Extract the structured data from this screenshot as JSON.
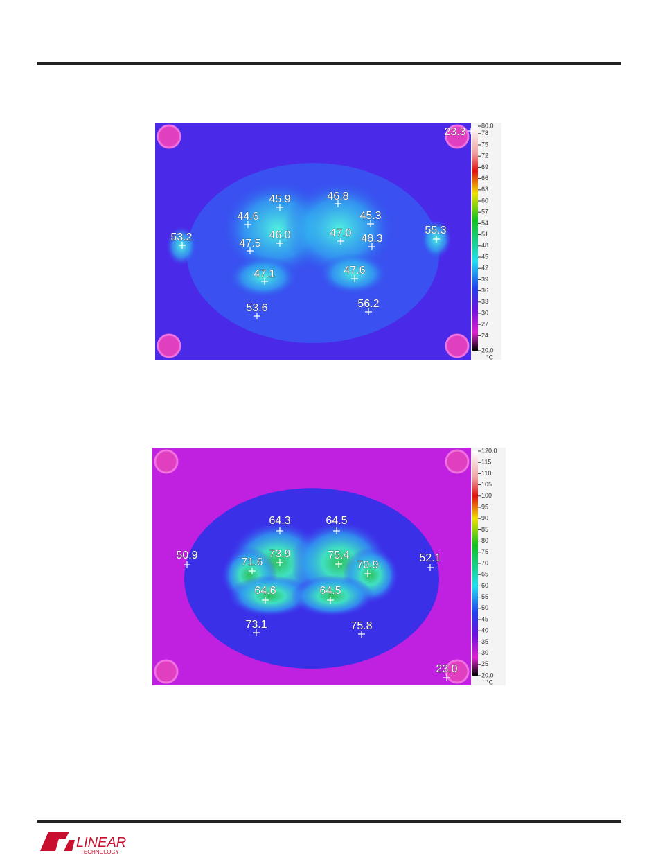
{
  "images": [
    {
      "readings": [
        "23.3",
        "45.9",
        "46.8",
        "44.6",
        "45.3",
        "53.2",
        "46.0",
        "47.0",
        "55.3",
        "47.5",
        "48.3",
        "47.1",
        "47.6",
        "53.6",
        "56.2"
      ],
      "scale": {
        "ticks": [
          "80.0",
          "78",
          "75",
          "72",
          "69",
          "66",
          "63",
          "60",
          "57",
          "54",
          "51",
          "48",
          "45",
          "42",
          "39",
          "36",
          "33",
          "30",
          "27",
          "24",
          "20.0"
        ],
        "unit": "°C"
      }
    },
    {
      "readings": [
        "64.3",
        "64.5",
        "50.9",
        "73.9",
        "75.4",
        "52.1",
        "71.6",
        "70.9",
        "64.6",
        "64.5",
        "73.1",
        "75.8",
        "23.0"
      ],
      "scale": {
        "ticks": [
          "120.0",
          "115",
          "110",
          "105",
          "100",
          "95",
          "90",
          "85",
          "80",
          "75",
          "70",
          "65",
          "60",
          "55",
          "50",
          "45",
          "40",
          "35",
          "30",
          "25",
          "20.0"
        ],
        "unit": "°C"
      }
    }
  ],
  "footer": {
    "logo": "LINEAR",
    "logo_sub": "TECHNOLOGY"
  }
}
